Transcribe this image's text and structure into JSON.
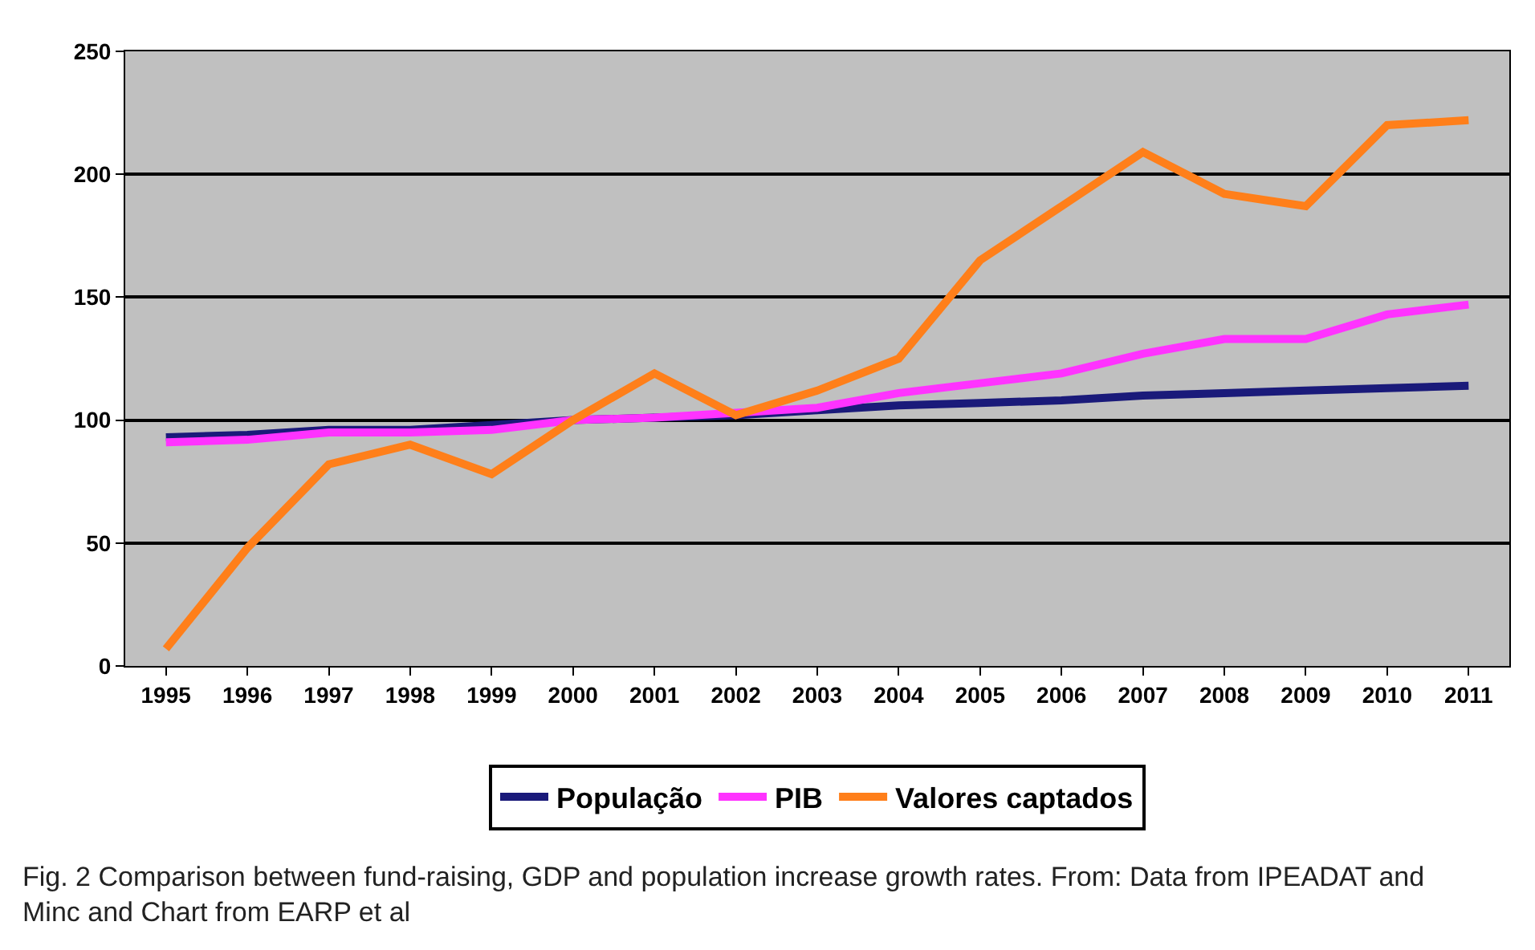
{
  "chart_data": {
    "type": "line",
    "categories": [
      "1995",
      "1996",
      "1997",
      "1998",
      "1999",
      "2000",
      "2001",
      "2002",
      "2003",
      "2004",
      "2005",
      "2006",
      "2007",
      "2008",
      "2009",
      "2010",
      "2011"
    ],
    "series": [
      {
        "name": "População",
        "color": "#1a1a7a",
        "values": [
          93,
          94,
          96,
          96,
          98,
          100,
          101,
          102,
          104,
          106,
          107,
          108,
          110,
          111,
          112,
          113,
          114
        ]
      },
      {
        "name": "PIB",
        "color": "#ff33ff",
        "values": [
          91,
          92,
          95,
          95,
          96,
          100,
          101,
          103,
          105,
          111,
          115,
          119,
          127,
          133,
          133,
          143,
          147
        ]
      },
      {
        "name": "Valores captados",
        "color": "#ff7f1a",
        "values": [
          7,
          48,
          82,
          90,
          78,
          100,
          119,
          102,
          112,
          125,
          165,
          187,
          209,
          192,
          187,
          220,
          222
        ]
      }
    ],
    "ylim": [
      0,
      250
    ],
    "yticks": [
      0,
      50,
      100,
      150,
      200,
      250
    ],
    "grid": "y",
    "legend": "bottom",
    "marker": "none",
    "line_style": "solid",
    "annotations": [
      "Fig. 2  Comparison between fund-raising, GDP and population increase growth rates. From: Data from IPEADAT and Minc and Chart from EARP et al"
    ]
  }
}
